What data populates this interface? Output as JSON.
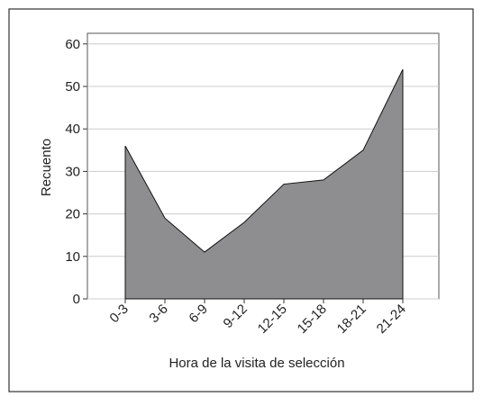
{
  "chart_data": {
    "type": "area",
    "x_label": "Hora de la visita de selección",
    "y_label": "Recuento",
    "categories": [
      "0-3",
      "3-6",
      "6-9",
      "9-12",
      "12-15",
      "15-18",
      "18-21",
      "21-24"
    ],
    "values": [
      36,
      19,
      11,
      18,
      27,
      28,
      35,
      54
    ],
    "color": "#8e8e90",
    "ylim": [
      0,
      62.5
    ],
    "yticks": [
      0,
      10,
      20,
      30,
      40,
      50,
      60
    ],
    "grid": true
  }
}
